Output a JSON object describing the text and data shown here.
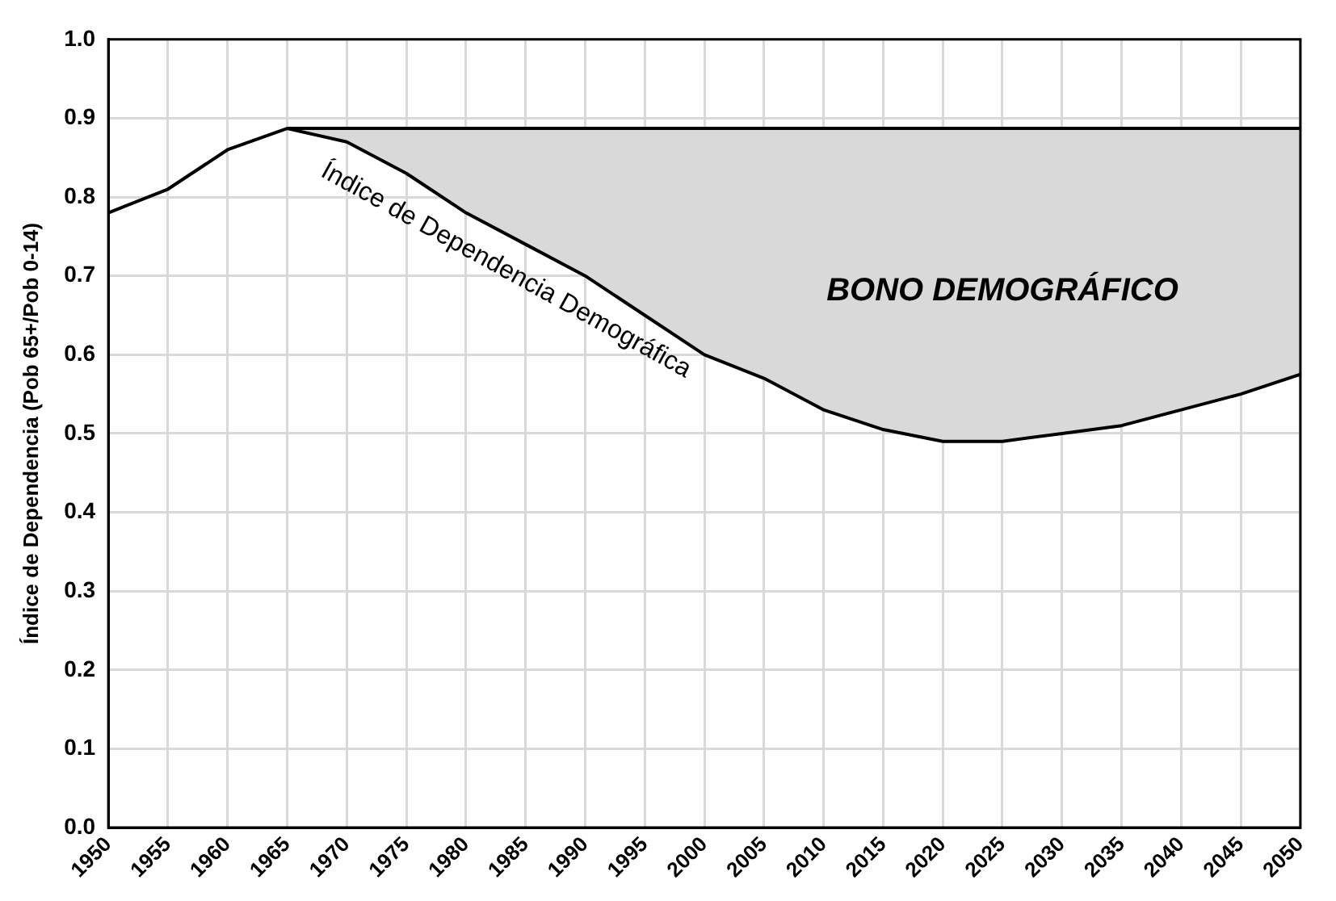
{
  "chart_data": {
    "type": "line",
    "ylabel": "Índice de Dependencia (Pob 65+/Pob 0-14)",
    "x": [
      1950,
      1955,
      1960,
      1965,
      1970,
      1975,
      1980,
      1985,
      1990,
      1995,
      2000,
      2005,
      2010,
      2015,
      2020,
      2025,
      2030,
      2035,
      2040,
      2045,
      2050
    ],
    "series": [
      {
        "color": "#000000",
        "values": [
          0.78,
          0.81,
          0.86,
          0.887,
          0.87,
          0.83,
          0.78,
          0.74,
          0.7,
          0.65,
          0.6,
          0.57,
          0.53,
          0.505,
          0.49,
          0.49,
          0.5,
          0.51,
          0.53,
          0.55,
          0.575
        ],
        "lower": [
          null,
          null,
          null,
          0.887,
          0.87,
          0.83,
          0.78,
          0.74,
          0.7,
          0.65,
          0.6,
          0.57,
          0.53,
          0.505,
          0.49,
          0.49,
          0.5,
          0.51,
          0.53,
          0.55,
          0.575
        ],
        "upper": [
          null,
          null,
          null,
          0.887,
          0.887,
          0.887,
          0.887,
          0.887,
          0.887,
          0.887,
          0.887,
          0.887,
          0.887,
          0.887,
          0.887,
          0.887,
          0.887,
          0.887,
          0.887,
          0.887,
          0.887
        ]
      },
      {
        "color": "#000000",
        "x": [
          1965,
          2050
        ],
        "values": [
          0.887,
          0.887
        ]
      }
    ],
    "annotations": [
      "Índice de Dependencia Demográfica",
      "BONO DEMOGRÁFICO"
    ],
    "xlim": [
      1950,
      2050
    ],
    "xticks": [
      1950,
      1955,
      1960,
      1965,
      1970,
      1975,
      1980,
      1985,
      1990,
      1995,
      2000,
      2005,
      2010,
      2015,
      2020,
      2025,
      2030,
      2035,
      2040,
      2045,
      2050
    ],
    "ylim": [
      0,
      1
    ],
    "yticks": [
      {
        "value": 0,
        "label": "0.0"
      },
      {
        "value": 0.1,
        "label": "0.1"
      },
      {
        "value": 0.2,
        "label": "0.2"
      },
      {
        "value": 0.3,
        "label": "0.3"
      },
      {
        "value": 0.4,
        "label": "0.4"
      },
      {
        "value": 0.5,
        "label": "0.5"
      },
      {
        "value": 0.6,
        "label": "0.6"
      },
      {
        "value": 0.7,
        "label": "0.7"
      },
      {
        "value": 0.8,
        "label": "0.8"
      },
      {
        "value": 0.9,
        "label": "0.9"
      },
      {
        "value": 1,
        "label": "1.0"
      }
    ],
    "grid": true,
    "legend": false,
    "marker": "none",
    "line_style": "solid"
  }
}
